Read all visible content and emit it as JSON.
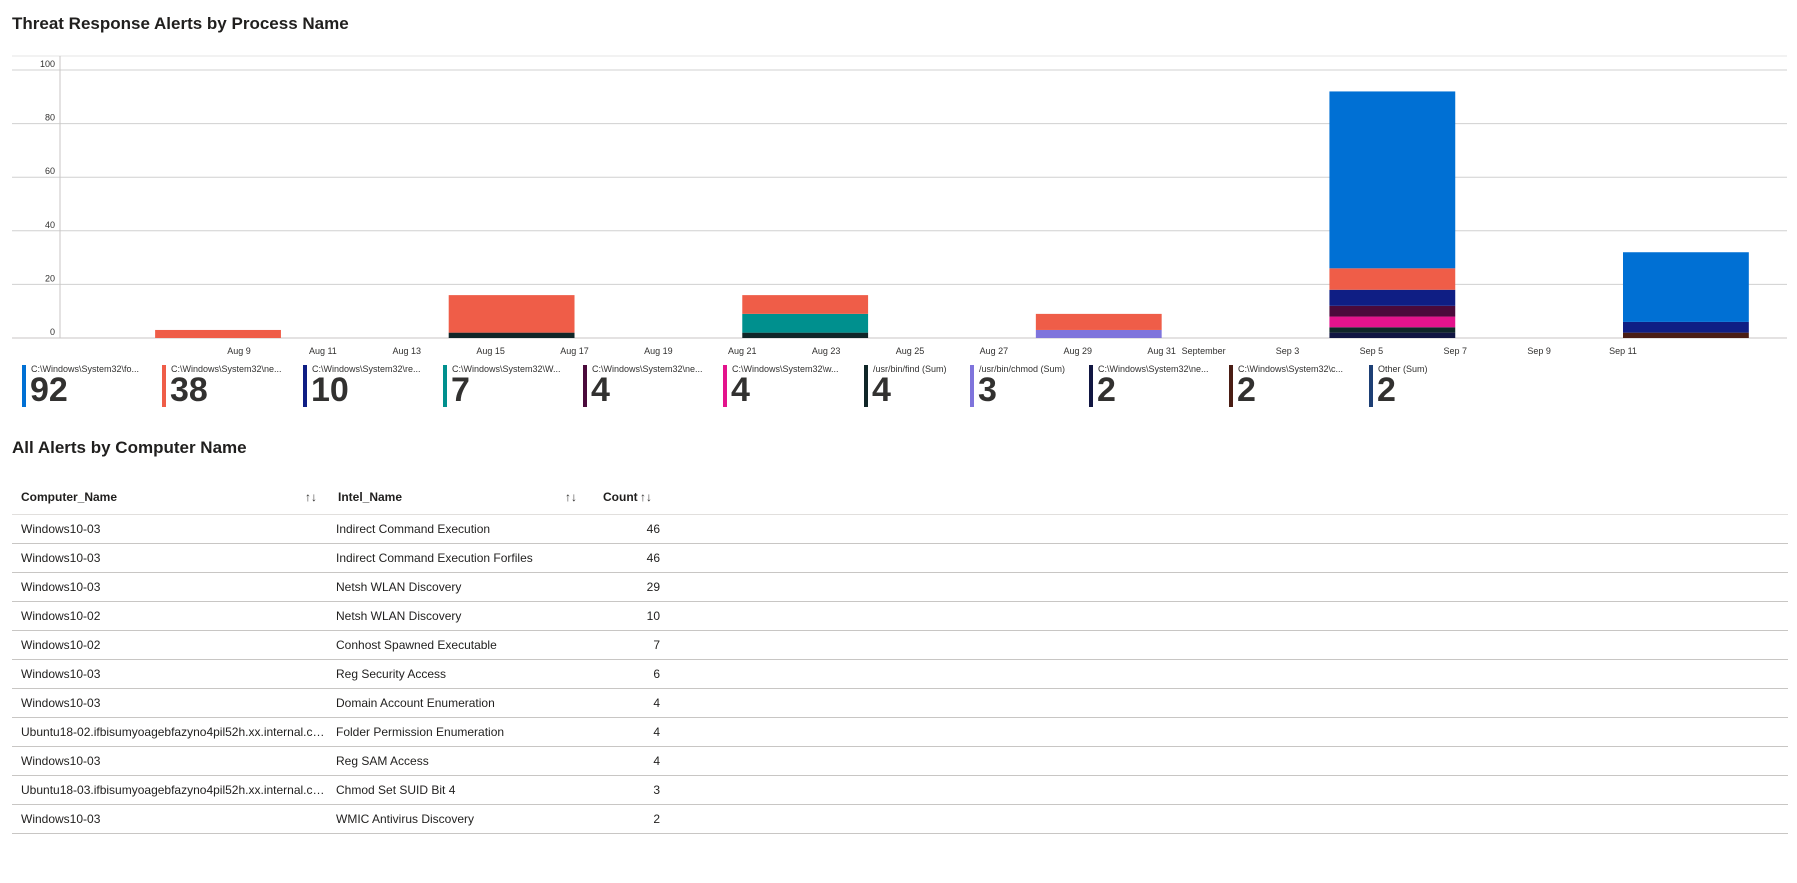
{
  "titles": {
    "chart": "Threat Response Alerts by Process Name",
    "table": "All Alerts by Computer Name"
  },
  "chart_data": {
    "type": "bar",
    "stacked": true,
    "ylim": [
      0,
      100
    ],
    "y_ticks": [
      0,
      20,
      40,
      60,
      80,
      100
    ],
    "grid": true,
    "x_tick_labels": [
      "Aug 9",
      "Aug 11",
      "Aug 13",
      "Aug 15",
      "Aug 17",
      "Aug 19",
      "Aug 21",
      "Aug 23",
      "Aug 25",
      "Aug 27",
      "Aug 29",
      "Aug 31",
      "September",
      "Sep 3",
      "Sep 5",
      "Sep 7",
      "Sep 9",
      "Sep 11"
    ],
    "x_ticks": [
      "2024-08-09",
      "2024-08-11",
      "2024-08-13",
      "2024-08-15",
      "2024-08-17",
      "2024-08-19",
      "2024-08-21",
      "2024-08-23",
      "2024-08-25",
      "2024-08-27",
      "2024-08-29",
      "2024-08-31",
      "2024-09-01",
      "2024-09-03",
      "2024-09-05",
      "2024-09-07",
      "2024-09-09",
      "2024-09-11"
    ],
    "bars": [
      {
        "start": "2024-08-07",
        "end": "2024-08-10",
        "segments": [
          {
            "series": "s2",
            "value": 3
          }
        ]
      },
      {
        "start": "2024-08-14",
        "end": "2024-08-17",
        "segments": [
          {
            "series": "s1",
            "value": 2
          },
          {
            "series": "s2",
            "value": 14
          }
        ]
      },
      {
        "start": "2024-08-21",
        "end": "2024-08-24",
        "segments": [
          {
            "series": "s1",
            "value": 2
          },
          {
            "series": "s4",
            "value": 7
          },
          {
            "series": "s2",
            "value": 7
          }
        ]
      },
      {
        "start": "2024-08-28",
        "end": "2024-08-31",
        "segments": [
          {
            "series": "s8",
            "value": 3
          },
          {
            "series": "s2",
            "value": 6
          }
        ]
      },
      {
        "start": "2024-09-04",
        "end": "2024-09-07",
        "segments": [
          {
            "series": "s9",
            "value": 2
          },
          {
            "series": "s1",
            "value": 2
          },
          {
            "series": "s6",
            "value": 4
          },
          {
            "series": "s5",
            "value": 4
          },
          {
            "series": "s3",
            "value": 6
          },
          {
            "series": "s2",
            "value": 8
          },
          {
            "series": "s0",
            "value": 66
          }
        ]
      },
      {
        "start": "2024-09-11",
        "end": "2024-09-14",
        "segments": [
          {
            "series": "s10",
            "value": 2
          },
          {
            "series": "s3",
            "value": 4
          },
          {
            "series": "s0",
            "value": 26
          }
        ]
      }
    ],
    "legend": [
      {
        "id": "s0",
        "label": "C:\\Windows\\System32\\fo...",
        "value": 92,
        "color": "#0070d4"
      },
      {
        "id": "s2",
        "label": "C:\\Windows\\System32\\ne...",
        "value": 38,
        "color": "#ef5d48"
      },
      {
        "id": "s3",
        "label": "C:\\Windows\\System32\\re...",
        "value": 10,
        "color": "#0f1e84"
      },
      {
        "id": "s4",
        "label": "C:\\Windows\\System32\\W...",
        "value": 7,
        "color": "#00908e"
      },
      {
        "id": "s5",
        "label": "C:\\Windows\\System32\\ne...",
        "value": 4,
        "color": "#4b0a3b"
      },
      {
        "id": "s6",
        "label": "C:\\Windows\\System32\\w...",
        "value": 4,
        "color": "#e3138c"
      },
      {
        "id": "s1",
        "label": "/usr/bin/find (Sum)",
        "value": 4,
        "color": "#102628"
      },
      {
        "id": "s8",
        "label": "/usr/bin/chmod (Sum)",
        "value": 3,
        "color": "#7f74dc"
      },
      {
        "id": "s9",
        "label": "C:\\Windows\\System32\\ne...",
        "value": 2,
        "color": "#111642"
      },
      {
        "id": "s10",
        "label": "C:\\Windows\\System32\\c...",
        "value": 2,
        "color": "#4a1d14"
      },
      {
        "id": "s11",
        "label": "Other (Sum)",
        "value": 2,
        "color": "#1d3f75"
      }
    ]
  },
  "table": {
    "headers": {
      "computer": "Computer_Name",
      "intel": "Intel_Name",
      "count": "Count",
      "sort_icon": "↑↓"
    },
    "rows": [
      {
        "computer": "Windows10-03",
        "intel": "Indirect Command Execution",
        "count": "46"
      },
      {
        "computer": "Windows10-03",
        "intel": "Indirect Command Execution Forfiles",
        "count": "46"
      },
      {
        "computer": "Windows10-03",
        "intel": "Netsh WLAN Discovery",
        "count": "29"
      },
      {
        "computer": "Windows10-02",
        "intel": "Netsh WLAN Discovery",
        "count": "10"
      },
      {
        "computer": "Windows10-02",
        "intel": "Conhost Spawned Executable",
        "count": "7"
      },
      {
        "computer": "Windows10-03",
        "intel": "Reg Security Access",
        "count": "6"
      },
      {
        "computer": "Windows10-03",
        "intel": "Domain Account Enumeration",
        "count": "4"
      },
      {
        "computer": "Ubuntu18-02.ifbisumyoagebfazyno4pil52h.xx.internal.clo...",
        "intel": "Folder Permission Enumeration",
        "count": "4"
      },
      {
        "computer": "Windows10-03",
        "intel": "Reg SAM Access",
        "count": "4"
      },
      {
        "computer": "Ubuntu18-03.ifbisumyoagebfazyno4pil52h.xx.internal.clo...",
        "intel": "Chmod Set SUID Bit 4",
        "count": "3"
      },
      {
        "computer": "Windows10-03",
        "intel": "WMIC Antivirus Discovery",
        "count": "2"
      }
    ]
  }
}
